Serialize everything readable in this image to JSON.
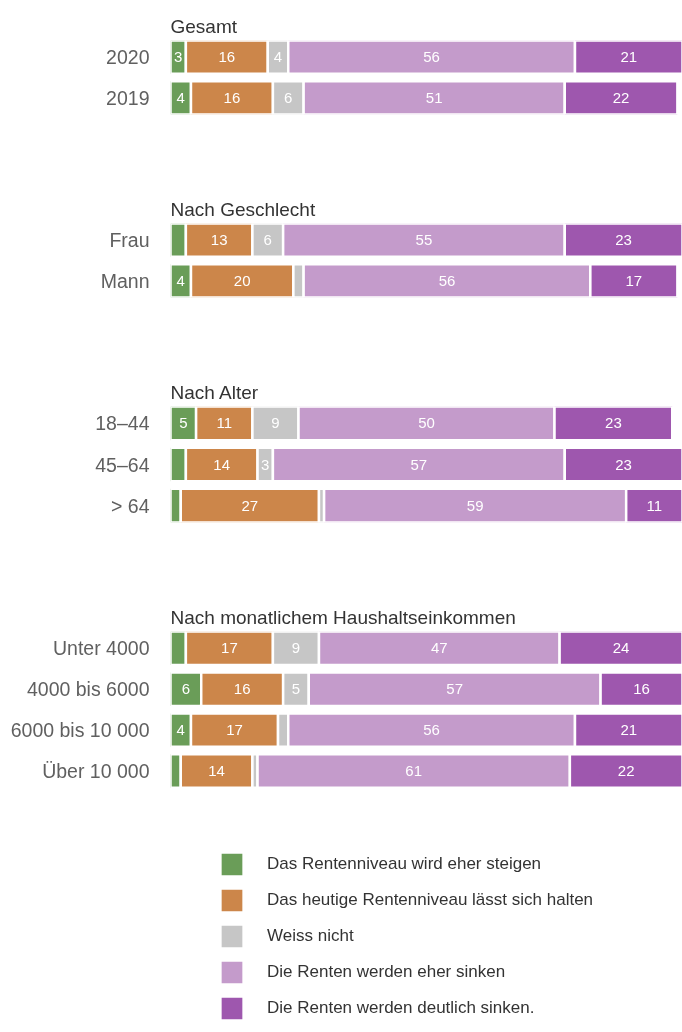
{
  "chart_data": [
    {
      "type": "bar",
      "title": "Gesamt",
      "orientation": "horizontal",
      "stacked": true,
      "xlim": [
        0,
        100
      ],
      "tick_labels": "y",
      "categories": [
        "2020",
        "2019"
      ],
      "series": [
        {
          "color": "#6a9d58",
          "values": [
            3,
            4
          ],
          "value_labels": [
            "3",
            "4"
          ]
        },
        {
          "color": "#cc864a",
          "values": [
            16,
            16
          ],
          "value_labels": [
            "16",
            "16"
          ]
        },
        {
          "color": "#c6c6c6",
          "values": [
            4,
            6
          ],
          "value_labels": [
            "4",
            "6"
          ]
        },
        {
          "color": "#c49bcb",
          "values": [
            56,
            51
          ],
          "value_labels": [
            "56",
            "51"
          ]
        },
        {
          "color": "#9e57ae",
          "values": [
            21,
            22
          ],
          "value_labels": [
            "21",
            "22"
          ]
        }
      ]
    },
    {
      "type": "bar",
      "title": "Nach Geschlecht",
      "orientation": "horizontal",
      "stacked": true,
      "xlim": [
        0,
        100
      ],
      "tick_labels": "y",
      "categories": [
        "Frau",
        "Mann"
      ],
      "series": [
        {
          "color": "#6a9d58",
          "values": [
            3,
            4
          ],
          "value_labels": [
            null,
            "4"
          ]
        },
        {
          "color": "#cc864a",
          "values": [
            13,
            20
          ],
          "value_labels": [
            "13",
            "20"
          ]
        },
        {
          "color": "#c6c6c6",
          "values": [
            6,
            2
          ],
          "value_labels": [
            "6",
            null
          ]
        },
        {
          "color": "#c49bcb",
          "values": [
            55,
            56
          ],
          "value_labels": [
            "55",
            "56"
          ]
        },
        {
          "color": "#9e57ae",
          "values": [
            23,
            17
          ],
          "value_labels": [
            "23",
            "17"
          ]
        }
      ]
    },
    {
      "type": "bar",
      "title": "Nach Alter",
      "orientation": "horizontal",
      "stacked": true,
      "xlim": [
        0,
        100
      ],
      "tick_labels": "y",
      "categories": [
        "18–44",
        "45–64",
        "> 64"
      ],
      "series": [
        {
          "color": "#6a9d58",
          "values": [
            5,
            3,
            2
          ],
          "value_labels": [
            "5",
            null,
            null
          ]
        },
        {
          "color": "#cc864a",
          "values": [
            11,
            14,
            27
          ],
          "value_labels": [
            "11",
            "14",
            "27"
          ]
        },
        {
          "color": "#c6c6c6",
          "values": [
            9,
            3,
            1
          ],
          "value_labels": [
            "9",
            "3",
            null
          ]
        },
        {
          "color": "#c49bcb",
          "values": [
            50,
            57,
            59
          ],
          "value_labels": [
            "50",
            "57",
            "59"
          ]
        },
        {
          "color": "#9e57ae",
          "values": [
            23,
            23,
            11
          ],
          "value_labels": [
            "23",
            "23",
            "11"
          ]
        }
      ]
    },
    {
      "type": "bar",
      "title": "Nach monatlichem Haushaltseinkommen",
      "orientation": "horizontal",
      "stacked": true,
      "xlim": [
        0,
        100
      ],
      "tick_labels": "y",
      "legend": "bottom",
      "categories": [
        "Unter 4000",
        "4000 bis 6000",
        "6000 bis 10 000",
        "Über 10 000"
      ],
      "series": [
        {
          "name": "Das Rentenniveau wird eher steigen",
          "color": "#6a9d58",
          "values": [
            3,
            6,
            4,
            2
          ],
          "value_labels": [
            null,
            "6",
            "4",
            null
          ]
        },
        {
          "name": "Das heutige Rentenniveau lässt sich halten",
          "color": "#cc864a",
          "values": [
            17,
            16,
            17,
            14
          ],
          "value_labels": [
            "17",
            "16",
            "17",
            "14"
          ]
        },
        {
          "name": "Weiss nicht",
          "color": "#c6c6c6",
          "values": [
            9,
            5,
            2,
            1
          ],
          "value_labels": [
            "9",
            "5",
            null,
            null
          ]
        },
        {
          "name": "Die Renten werden eher sinken",
          "color": "#c49bcb",
          "values": [
            47,
            57,
            56,
            61
          ],
          "value_labels": [
            "47",
            "57",
            "56",
            "61"
          ]
        },
        {
          "name": "Die Renten werden deutlich sinken.",
          "color": "#9e57ae",
          "values": [
            24,
            16,
            21,
            22
          ],
          "value_labels": [
            "24",
            "16",
            "21",
            "22"
          ]
        }
      ]
    }
  ]
}
